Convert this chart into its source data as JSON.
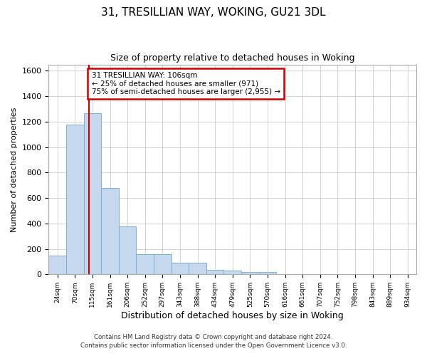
{
  "title_line1": "31, TRESILLIAN WAY, WOKING, GU21 3DL",
  "title_line2": "Size of property relative to detached houses in Woking",
  "xlabel": "Distribution of detached houses by size in Woking",
  "ylabel": "Number of detached properties",
  "bar_labels": [
    "24sqm",
    "70sqm",
    "115sqm",
    "161sqm",
    "206sqm",
    "252sqm",
    "297sqm",
    "343sqm",
    "388sqm",
    "434sqm",
    "479sqm",
    "525sqm",
    "570sqm",
    "616sqm",
    "661sqm",
    "707sqm",
    "752sqm",
    "798sqm",
    "843sqm",
    "889sqm",
    "934sqm"
  ],
  "bar_values": [
    150,
    1175,
    1265,
    680,
    375,
    160,
    160,
    90,
    90,
    35,
    30,
    20,
    20,
    0,
    0,
    0,
    0,
    0,
    0,
    0,
    0
  ],
  "bar_color": "#c5d8ed",
  "bar_edge_color": "#7aafd4",
  "grid_color": "#cccccc",
  "background_color": "#ffffff",
  "annotation_text": "31 TRESILLIAN WAY: 106sqm\n← 25% of detached houses are smaller (971)\n75% of semi-detached houses are larger (2,955) →",
  "annotation_box_color": "#ffffff",
  "annotation_border_color": "#cc0000",
  "footnote_line1": "Contains HM Land Registry data © Crown copyright and database right 2024.",
  "footnote_line2": "Contains public sector information licensed under the Open Government Licence v3.0.",
  "ylim": [
    0,
    1650
  ],
  "yticks": [
    0,
    200,
    400,
    600,
    800,
    1000,
    1200,
    1400,
    1600
  ]
}
